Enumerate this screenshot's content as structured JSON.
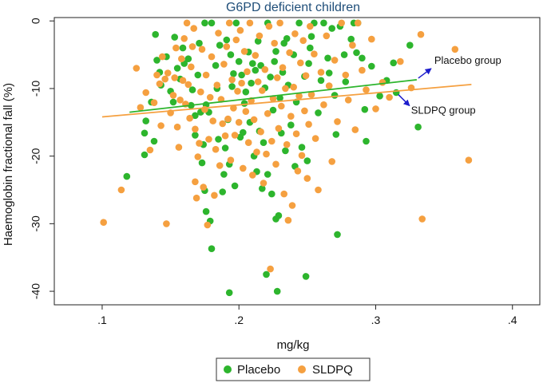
{
  "chart_data": {
    "type": "scatter",
    "title": "G6PD deficient children",
    "xlabel": "mg/kg",
    "ylabel": "Haemoglobin fractional fall (%)",
    "xlim": [
      0.065,
      0.42
    ],
    "ylim": [
      -42,
      0.5
    ],
    "xticks": [
      0.1,
      0.2,
      0.3,
      0.4
    ],
    "xtick_labels": [
      ".1",
      ".2",
      ".3",
      ".4"
    ],
    "yticks": [
      0,
      -10,
      -20,
      -30,
      -40
    ],
    "ytick_labels": [
      "0",
      "-10",
      "-20",
      "-30",
      "-40"
    ],
    "grid": false,
    "legend": {
      "position": "bottom",
      "entries": [
        "Placebo",
        "SLDPQ"
      ]
    },
    "colors": {
      "Placebo": "#2db52d",
      "SLDPQ": "#f5a040",
      "title": "#1f4e79",
      "arrow": "#1d1dcc"
    },
    "series": [
      {
        "name": "Placebo",
        "fit": {
          "x": [
            0.12,
            0.33
          ],
          "y": [
            -13.5,
            -8.7
          ]
        },
        "points": [
          [
            0.118,
            -23.0
          ],
          [
            0.131,
            -16.6
          ],
          [
            0.131,
            -19.8
          ],
          [
            0.132,
            -14.8
          ],
          [
            0.136,
            -12.0
          ],
          [
            0.138,
            -17.8
          ],
          [
            0.139,
            -2.0
          ],
          [
            0.14,
            -5.8
          ],
          [
            0.142,
            -7.6
          ],
          [
            0.143,
            -9.5
          ],
          [
            0.147,
            -5.3
          ],
          [
            0.15,
            -10.4
          ],
          [
            0.152,
            -12.0
          ],
          [
            0.153,
            -2.4
          ],
          [
            0.155,
            -7.0
          ],
          [
            0.157,
            -8.6
          ],
          [
            0.159,
            -4.0
          ],
          [
            0.16,
            -6.3
          ],
          [
            0.163,
            -5.6
          ],
          [
            0.165,
            -12.5
          ],
          [
            0.166,
            -10.2
          ],
          [
            0.168,
            -16.9
          ],
          [
            0.168,
            -14.0
          ],
          [
            0.17,
            -8.0
          ],
          [
            0.171,
            -3.3
          ],
          [
            0.172,
            -13.5
          ],
          [
            0.173,
            -21.0
          ],
          [
            0.174,
            -18.3
          ],
          [
            0.175,
            -25.1
          ],
          [
            0.175,
            -0.3
          ],
          [
            0.176,
            -12.4
          ],
          [
            0.176,
            -28.2
          ],
          [
            0.178,
            -13.5
          ],
          [
            0.179,
            -29.6
          ],
          [
            0.18,
            -33.7
          ],
          [
            0.18,
            -0.3
          ],
          [
            0.183,
            -6.6
          ],
          [
            0.184,
            -10.0
          ],
          [
            0.185,
            -17.5
          ],
          [
            0.186,
            -3.6
          ],
          [
            0.188,
            -25.3
          ],
          [
            0.189,
            -22.7
          ],
          [
            0.19,
            -18.8
          ],
          [
            0.191,
            -2.8
          ],
          [
            0.192,
            -14.6
          ],
          [
            0.193,
            -21.2
          ],
          [
            0.193,
            -40.2
          ],
          [
            0.194,
            -5.0
          ],
          [
            0.195,
            -9.7
          ],
          [
            0.196,
            -7.8
          ],
          [
            0.197,
            -24.4
          ],
          [
            0.198,
            -0.3
          ],
          [
            0.2,
            -6.0
          ],
          [
            0.201,
            -17.2
          ],
          [
            0.202,
            -8.0
          ],
          [
            0.203,
            -16.5
          ],
          [
            0.204,
            -12.2
          ],
          [
            0.205,
            -10.5
          ],
          [
            0.207,
            -4.6
          ],
          [
            0.208,
            -15.0
          ],
          [
            0.209,
            -9.2
          ],
          [
            0.21,
            -6.3
          ],
          [
            0.211,
            -20.0
          ],
          [
            0.212,
            -7.3
          ],
          [
            0.213,
            -22.3
          ],
          [
            0.214,
            -3.0
          ],
          [
            0.215,
            -16.3
          ],
          [
            0.216,
            -6.6
          ],
          [
            0.217,
            -24.8
          ],
          [
            0.218,
            -18.0
          ],
          [
            0.219,
            -9.9
          ],
          [
            0.22,
            -37.5
          ],
          [
            0.221,
            -22.7
          ],
          [
            0.221,
            -0.3
          ],
          [
            0.223,
            -8.3
          ],
          [
            0.224,
            -25.6
          ],
          [
            0.225,
            -13.2
          ],
          [
            0.226,
            -6.0
          ],
          [
            0.227,
            -4.5
          ],
          [
            0.227,
            -29.3
          ],
          [
            0.228,
            -40.0
          ],
          [
            0.229,
            -28.8
          ],
          [
            0.23,
            -11.4
          ],
          [
            0.231,
            -16.6
          ],
          [
            0.232,
            -7.6
          ],
          [
            0.233,
            -3.3
          ],
          [
            0.234,
            -19.2
          ],
          [
            0.235,
            -2.6
          ],
          [
            0.236,
            -9.5
          ],
          [
            0.238,
            -15.4
          ],
          [
            0.24,
            -5.0
          ],
          [
            0.241,
            -21.5
          ],
          [
            0.242,
            -12.0
          ],
          [
            0.244,
            -0.3
          ],
          [
            0.246,
            -18.7
          ],
          [
            0.248,
            -8.2
          ],
          [
            0.249,
            -37.8
          ],
          [
            0.25,
            -20.7
          ],
          [
            0.251,
            -6.3
          ],
          [
            0.252,
            -4.0
          ],
          [
            0.253,
            -2.3
          ],
          [
            0.255,
            -0.3
          ],
          [
            0.258,
            -13.6
          ],
          [
            0.26,
            -8.8
          ],
          [
            0.262,
            -0.3
          ],
          [
            0.265,
            -5.5
          ],
          [
            0.266,
            -7.7
          ],
          [
            0.268,
            -1.1
          ],
          [
            0.27,
            -11.0
          ],
          [
            0.271,
            -16.8
          ],
          [
            0.272,
            -31.6
          ],
          [
            0.274,
            -0.8
          ],
          [
            0.277,
            -5.0
          ],
          [
            0.278,
            -9.0
          ],
          [
            0.282,
            -2.7
          ],
          [
            0.284,
            -0.3
          ],
          [
            0.286,
            -4.7
          ],
          [
            0.287,
            -0.3
          ],
          [
            0.29,
            -5.5
          ],
          [
            0.292,
            -13.1
          ],
          [
            0.293,
            -17.8
          ],
          [
            0.297,
            -6.7
          ],
          [
            0.303,
            -11.1
          ],
          [
            0.308,
            -8.8
          ],
          [
            0.313,
            -6.2
          ],
          [
            0.315,
            -10.6
          ],
          [
            0.325,
            -3.6
          ],
          [
            0.331,
            -15.7
          ]
        ]
      },
      {
        "name": "SLDPQ",
        "fit": {
          "x": [
            0.1,
            0.37
          ],
          "y": [
            -14.2,
            -9.4
          ]
        },
        "points": [
          [
            0.101,
            -29.8
          ],
          [
            0.114,
            -25.0
          ],
          [
            0.125,
            -7.0
          ],
          [
            0.128,
            -12.8
          ],
          [
            0.132,
            -10.6
          ],
          [
            0.135,
            -19.1
          ],
          [
            0.138,
            -12.1
          ],
          [
            0.14,
            -8.0
          ],
          [
            0.142,
            -9.3
          ],
          [
            0.143,
            -15.5
          ],
          [
            0.144,
            -5.3
          ],
          [
            0.146,
            -8.6
          ],
          [
            0.147,
            -30.0
          ],
          [
            0.148,
            -7.7
          ],
          [
            0.15,
            -13.6
          ],
          [
            0.152,
            -11.0
          ],
          [
            0.153,
            -8.4
          ],
          [
            0.154,
            -4.0
          ],
          [
            0.155,
            -15.7
          ],
          [
            0.156,
            -18.7
          ],
          [
            0.157,
            -11.7
          ],
          [
            0.158,
            -5.6
          ],
          [
            0.159,
            -8.8
          ],
          [
            0.16,
            -2.6
          ],
          [
            0.161,
            -12.3
          ],
          [
            0.162,
            -0.3
          ],
          [
            0.163,
            -9.4
          ],
          [
            0.164,
            -14.4
          ],
          [
            0.165,
            -6.8
          ],
          [
            0.166,
            -3.8
          ],
          [
            0.167,
            -1.1
          ],
          [
            0.168,
            -16.0
          ],
          [
            0.168,
            -23.8
          ],
          [
            0.169,
            -26.2
          ],
          [
            0.17,
            -20.1
          ],
          [
            0.171,
            -18.1
          ],
          [
            0.172,
            -10.5
          ],
          [
            0.173,
            -4.2
          ],
          [
            0.174,
            -24.6
          ],
          [
            0.175,
            -13.1
          ],
          [
            0.176,
            -8.0
          ],
          [
            0.177,
            -30.2
          ],
          [
            0.178,
            -17.5
          ],
          [
            0.179,
            -11.3
          ],
          [
            0.18,
            -5.3
          ],
          [
            0.181,
            -14.8
          ],
          [
            0.182,
            -25.8
          ],
          [
            0.183,
            -19.0
          ],
          [
            0.184,
            -9.5
          ],
          [
            0.185,
            -1.8
          ],
          [
            0.186,
            -21.4
          ],
          [
            0.187,
            -11.6
          ],
          [
            0.188,
            -15.2
          ],
          [
            0.189,
            -6.4
          ],
          [
            0.19,
            -17.0
          ],
          [
            0.191,
            -3.8
          ],
          [
            0.192,
            -14.5
          ],
          [
            0.193,
            -0.3
          ],
          [
            0.194,
            -20.6
          ],
          [
            0.195,
            -8.7
          ],
          [
            0.196,
            -12.9
          ],
          [
            0.197,
            -16.9
          ],
          [
            0.198,
            -2.8
          ],
          [
            0.199,
            -10.4
          ],
          [
            0.2,
            -15.0
          ],
          [
            0.201,
            -1.4
          ],
          [
            0.202,
            -9.2
          ],
          [
            0.203,
            -21.8
          ],
          [
            0.204,
            -4.5
          ],
          [
            0.205,
            -13.4
          ],
          [
            0.206,
            -7.5
          ],
          [
            0.207,
            -18.0
          ],
          [
            0.208,
            -0.3
          ],
          [
            0.209,
            -11.8
          ],
          [
            0.21,
            -22.8
          ],
          [
            0.211,
            -14.6
          ],
          [
            0.212,
            -5.1
          ],
          [
            0.213,
            -19.4
          ],
          [
            0.214,
            -9.0
          ],
          [
            0.215,
            -2.2
          ],
          [
            0.216,
            -16.4
          ],
          [
            0.217,
            -10.3
          ],
          [
            0.218,
            -24.0
          ],
          [
            0.219,
            -7.2
          ],
          [
            0.22,
            -19.7
          ],
          [
            0.221,
            -13.7
          ],
          [
            0.222,
            -0.8
          ],
          [
            0.223,
            -36.7
          ],
          [
            0.224,
            -17.8
          ],
          [
            0.225,
            -11.5
          ],
          [
            0.226,
            -3.3
          ],
          [
            0.227,
            -21.2
          ],
          [
            0.228,
            -8.4
          ],
          [
            0.229,
            -15.9
          ],
          [
            0.23,
            -0.3
          ],
          [
            0.231,
            -12.6
          ],
          [
            0.232,
            -6.9
          ],
          [
            0.233,
            -25.6
          ],
          [
            0.234,
            -10.0
          ],
          [
            0.235,
            -18.3
          ],
          [
            0.236,
            -29.5
          ],
          [
            0.237,
            -4.7
          ],
          [
            0.238,
            -14.1
          ],
          [
            0.239,
            -27.3
          ],
          [
            0.24,
            -9.8
          ],
          [
            0.241,
            -1.9
          ],
          [
            0.242,
            -16.7
          ],
          [
            0.243,
            -22.2
          ],
          [
            0.244,
            -11.1
          ],
          [
            0.245,
            -6.2
          ],
          [
            0.246,
            -19.9
          ],
          [
            0.247,
            -2.9
          ],
          [
            0.248,
            -13.3
          ],
          [
            0.249,
            -8.1
          ],
          [
            0.25,
            -23.3
          ],
          [
            0.251,
            -15.3
          ],
          [
            0.252,
            -0.8
          ],
          [
            0.253,
            -10.9
          ],
          [
            0.255,
            -4.9
          ],
          [
            0.256,
            -17.4
          ],
          [
            0.258,
            -25.0
          ],
          [
            0.26,
            -7.6
          ],
          [
            0.262,
            -12.4
          ],
          [
            0.264,
            -2.2
          ],
          [
            0.266,
            -9.6
          ],
          [
            0.268,
            -20.8
          ],
          [
            0.27,
            -5.8
          ],
          [
            0.272,
            -14.9
          ],
          [
            0.275,
            -0.3
          ],
          [
            0.278,
            -8.0
          ],
          [
            0.28,
            -11.7
          ],
          [
            0.283,
            -3.6
          ],
          [
            0.285,
            -16.1
          ],
          [
            0.287,
            -0.3
          ],
          [
            0.29,
            -7.3
          ],
          [
            0.293,
            -10.2
          ],
          [
            0.297,
            -2.7
          ],
          [
            0.3,
            -13.0
          ],
          [
            0.305,
            -9.1
          ],
          [
            0.31,
            -11.3
          ],
          [
            0.318,
            -6.0
          ],
          [
            0.326,
            -9.9
          ],
          [
            0.333,
            -2.0
          ],
          [
            0.334,
            -29.3
          ],
          [
            0.358,
            -4.2
          ],
          [
            0.368,
            -20.6
          ]
        ]
      }
    ],
    "annotations": [
      {
        "text": "Placebo group",
        "series": "Placebo"
      },
      {
        "text": "SLDPQ group",
        "series": "SLDPQ"
      }
    ]
  }
}
